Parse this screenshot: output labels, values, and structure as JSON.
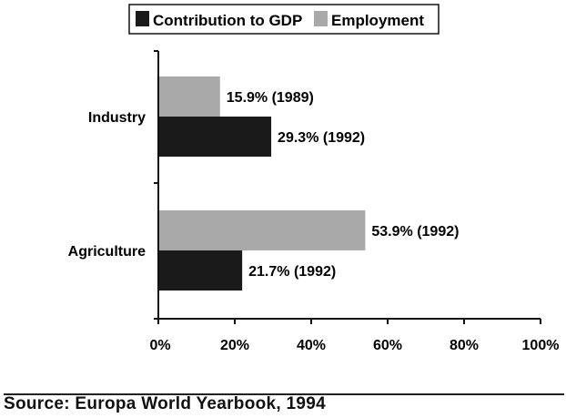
{
  "chart_data": {
    "type": "bar",
    "orientation": "horizontal",
    "categories": [
      "Industry",
      "Agriculture"
    ],
    "series": [
      {
        "name": "Contribution to GDP",
        "color": "#1a1a1a",
        "values": [
          29.3,
          21.7
        ],
        "labels": [
          "29.3% (1992)",
          "21.7% (1992)"
        ]
      },
      {
        "name": "Employment",
        "color": "#a9a9a9",
        "values": [
          15.9,
          53.9
        ],
        "labels": [
          "15.9% (1989)",
          "53.9% (1992)"
        ]
      }
    ],
    "xlim": [
      0,
      100
    ],
    "xticks": [
      0,
      20,
      40,
      60,
      80,
      100
    ],
    "xtick_labels": [
      "0%",
      "20%",
      "40%",
      "60%",
      "80%",
      "100%"
    ],
    "grid": false,
    "legend_position": "top"
  },
  "source": "Source: Europa World Yearbook, 1994"
}
